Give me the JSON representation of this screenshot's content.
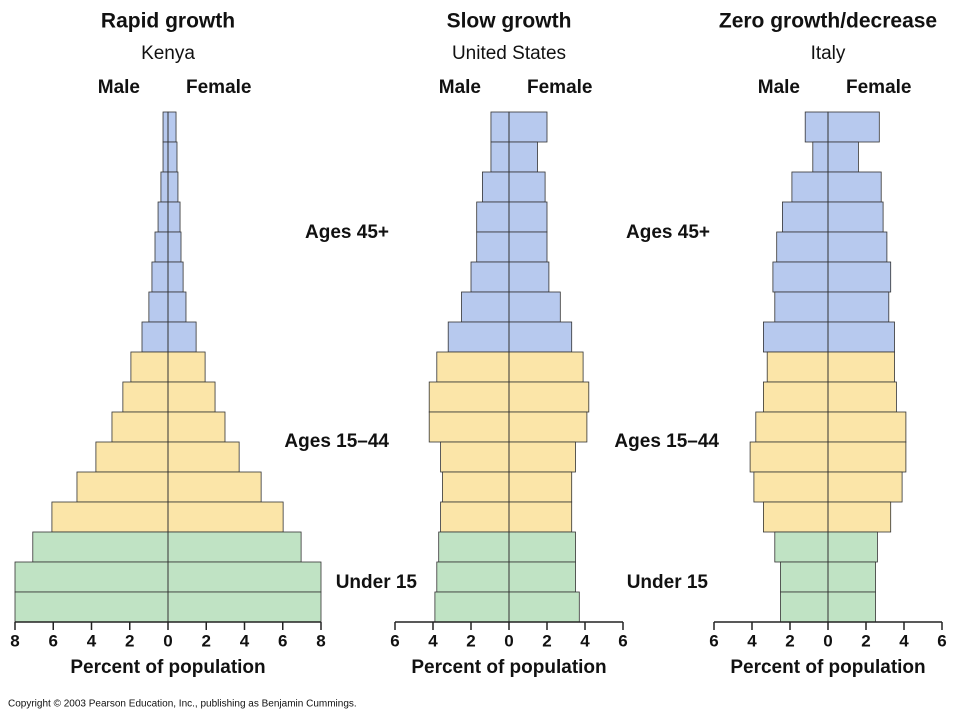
{
  "chart_data": [
    {
      "type": "pyramid",
      "title": "Rapid growth",
      "subtitle": "Kenya",
      "series": [
        {
          "name": "Male",
          "values": [
            0.26,
            0.26,
            0.37,
            0.52,
            0.68,
            0.84,
            1.0,
            1.36,
            1.94,
            2.36,
            2.93,
            3.77,
            4.76,
            6.07,
            7.07,
            8.0,
            8.0
          ]
        },
        {
          "name": "Female",
          "values": [
            0.42,
            0.47,
            0.52,
            0.63,
            0.68,
            0.79,
            0.94,
            1.47,
            1.94,
            2.46,
            2.98,
            3.72,
            4.87,
            6.02,
            6.96,
            8.0,
            8.0
          ]
        }
      ],
      "bar_colors": [
        "#b7c9ee",
        "#b7c9ee",
        "#b7c9ee",
        "#b7c9ee",
        "#b7c9ee",
        "#b7c9ee",
        "#b7c9ee",
        "#b7c9ee",
        "#fbe5a8",
        "#fbe5a8",
        "#fbe5a8",
        "#fbe5a8",
        "#fbe5a8",
        "#fbe5a8",
        "#c0e3c4",
        "#c0e3c4",
        "#c0e3c4"
      ],
      "xlim": [
        0,
        8
      ],
      "xticks": [
        0,
        2,
        4,
        6,
        8
      ],
      "xlabel": "Percent of population",
      "annotations": [
        "Ages 45+",
        "Ages 15–44",
        "Under 15"
      ]
    },
    {
      "type": "pyramid",
      "title": "Slow growth",
      "subtitle": "United States",
      "series": [
        {
          "name": "Male",
          "values": [
            0.95,
            0.95,
            1.4,
            1.7,
            1.7,
            2.0,
            2.5,
            3.2,
            3.8,
            4.2,
            4.2,
            3.6,
            3.5,
            3.6,
            3.7,
            3.8,
            3.9
          ]
        },
        {
          "name": "Female",
          "values": [
            2.0,
            1.5,
            1.9,
            2.0,
            2.0,
            2.1,
            2.7,
            3.3,
            3.9,
            4.2,
            4.1,
            3.5,
            3.3,
            3.3,
            3.5,
            3.5,
            3.7
          ]
        }
      ],
      "bar_colors": [
        "#b7c9ee",
        "#b7c9ee",
        "#b7c9ee",
        "#b7c9ee",
        "#b7c9ee",
        "#b7c9ee",
        "#b7c9ee",
        "#b7c9ee",
        "#fbe5a8",
        "#fbe5a8",
        "#fbe5a8",
        "#fbe5a8",
        "#fbe5a8",
        "#fbe5a8",
        "#c0e3c4",
        "#c0e3c4",
        "#c0e3c4"
      ],
      "xlim": [
        0,
        6
      ],
      "xticks": [
        0,
        2,
        4,
        6
      ],
      "xlabel": "Percent of population",
      "annotations": [
        "Ages 45+",
        "Ages 15–44",
        "Under 15"
      ]
    },
    {
      "type": "pyramid",
      "title": "Zero growth/decrease",
      "subtitle": "Italy",
      "series": [
        {
          "name": "Male",
          "values": [
            1.2,
            0.8,
            1.9,
            2.4,
            2.7,
            2.9,
            2.8,
            3.4,
            3.2,
            3.4,
            3.8,
            4.1,
            3.9,
            3.4,
            2.8,
            2.5,
            2.5
          ]
        },
        {
          "name": "Female",
          "values": [
            2.7,
            1.6,
            2.8,
            2.9,
            3.1,
            3.3,
            3.2,
            3.5,
            3.5,
            3.6,
            4.1,
            4.1,
            3.9,
            3.3,
            2.6,
            2.5,
            2.5
          ]
        }
      ],
      "bar_colors": [
        "#b7c9ee",
        "#b7c9ee",
        "#b7c9ee",
        "#b7c9ee",
        "#b7c9ee",
        "#b7c9ee",
        "#b7c9ee",
        "#b7c9ee",
        "#fbe5a8",
        "#fbe5a8",
        "#fbe5a8",
        "#fbe5a8",
        "#fbe5a8",
        "#fbe5a8",
        "#c0e3c4",
        "#c0e3c4",
        "#c0e3c4"
      ],
      "xlim": [
        0,
        6
      ],
      "xticks": [
        0,
        2,
        4,
        6
      ],
      "xlabel": "Percent of population"
    }
  ],
  "footer": "Copyright © 2003 Pearson Education, Inc., publishing as Benjamin Cummings."
}
